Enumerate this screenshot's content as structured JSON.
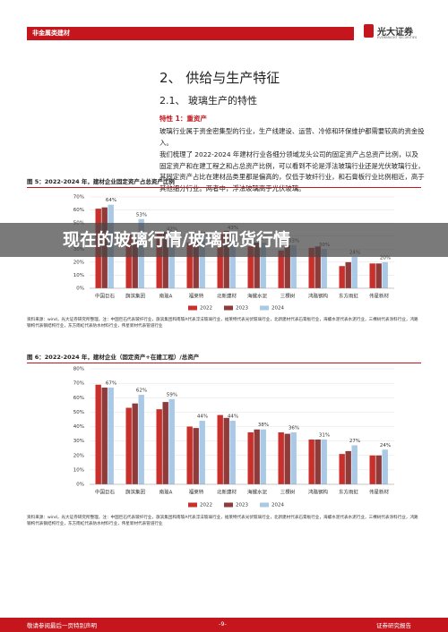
{
  "header": {
    "section": "非金属类建材",
    "brand": "光大证券",
    "brand_en": "EVERBRIGHT SECURITIES"
  },
  "heading": "2、 供给与生产特征",
  "subheading": "2.1、 玻璃生产的特性",
  "feature": "特性 1：重资产",
  "paragraphs": [
    "玻璃行业属于资金密集型的行业，生产线建设、运营、冷修和环保维护都需要较高的资金投入。",
    "我们梳理了 2022-2024 年建材行业各细分领域龙头公司的固定资产占总资产比例，以及固定资产和在建工程之和占总资产比例，可以看到不论是浮法玻璃行业还是光伏玻璃行业，其固定资产占比在建材品类里都是偏高的，仅低于玻纤行业，和石膏板行业比例相近，高于其他细分行业。两者中，浮法玻璃高于光伏玻璃。"
  ],
  "chart_data": [
    {
      "type": "bar",
      "title": "图 5：2022-2024 年，建材企业固定资产占总资产比例",
      "source": "资料来源：wind，光大证券研究所整理，注：中国巨石代表玻纤行业，旗滨集团和南玻A代表浮法玻璃行业，福莱特代表光伏玻璃行业，北新建材代表石膏板行业，海螺水泥代表水泥行业，三棵树代表涂料行业，鸿路钢构代表钢结构行业，东方雨虹代表防水材料行业，伟星新材代表管道行业",
      "categories": [
        "中国巨石",
        "旗滨集团",
        "南玻A",
        "福莱特",
        "北新建材",
        "海螺水泥",
        "三棵树",
        "鸿路钢构",
        "东方雨虹",
        "伟星新材"
      ],
      "series": [
        {
          "name": "2022",
          "color": "#c9302c",
          "values": [
            61,
            41,
            43,
            35,
            43,
            32,
            29,
            31,
            17,
            19
          ]
        },
        {
          "name": "2023",
          "color": "#8e3b3b",
          "values": [
            62,
            37,
            43,
            36,
            44,
            35,
            33,
            32,
            20,
            19
          ]
        },
        {
          "name": "2024",
          "color": "#a9c9e6",
          "values": [
            64,
            53,
            42,
            38,
            43,
            35,
            33,
            30,
            24,
            20
          ],
          "value_labels": [
            "64%",
            "53%",
            "42%",
            "38%",
            "43%",
            "35%",
            "33%",
            "30%",
            "24%",
            "20%"
          ]
        }
      ],
      "ylim": [
        0,
        70
      ],
      "yticks": [
        {
          "value": 0,
          "label": "0%"
        },
        {
          "value": 10,
          "label": "10%"
        },
        {
          "value": 20,
          "label": "20%"
        },
        {
          "value": 30,
          "label": "30%"
        },
        {
          "value": 40,
          "label": "40%"
        },
        {
          "value": 50,
          "label": "50%"
        },
        {
          "value": 60,
          "label": "60%"
        },
        {
          "value": 70,
          "label": "70%"
        }
      ],
      "grid": true,
      "legend": "bottom"
    },
    {
      "type": "bar",
      "title": "图 6：2022-2024 年，建材企业（固定资产+在建工程）/总资产",
      "source": "资料来源：wind，光大证券研究所整理，注：中国巨石代表玻纤行业，旗滨集团和南玻A代表浮法玻璃行业，福莱特代表光伏玻璃行业，北新建材代表石膏板行业，海螺水泥代表水泥行业，三棵树代表涂料行业，鸿路钢构代表钢结构行业，东方雨虹代表防水材料行业，伟星新材代表管道行业",
      "categories": [
        "中国巨石",
        "旗滨集团",
        "南玻A",
        "福莱特",
        "北新建材",
        "海螺水泥",
        "三棵树",
        "鸿路钢构",
        "东方雨虹",
        "伟星新材"
      ],
      "series": [
        {
          "name": "2022",
          "color": "#c9302c",
          "values": [
            69,
            53,
            52,
            40,
            48,
            36,
            36,
            31,
            21,
            20
          ]
        },
        {
          "name": "2023",
          "color": "#8e3b3b",
          "values": [
            67,
            56,
            57,
            39,
            46,
            38,
            35,
            31,
            23,
            20
          ]
        },
        {
          "name": "2024",
          "color": "#a9c9e6",
          "values": [
            67,
            62,
            59,
            44,
            44,
            38,
            36,
            31,
            27,
            24
          ],
          "value_labels": [
            "67%",
            "62%",
            "59%",
            "44%",
            "44%",
            "38%",
            "36%",
            "31%",
            "27%",
            "24%"
          ]
        }
      ],
      "ylim": [
        0,
        80
      ],
      "yticks": [
        {
          "value": 0,
          "label": "0%"
        },
        {
          "value": 10,
          "label": "10%"
        },
        {
          "value": 20,
          "label": "20%"
        },
        {
          "value": 30,
          "label": "30%"
        },
        {
          "value": 40,
          "label": "40%"
        },
        {
          "value": 50,
          "label": "50%"
        },
        {
          "value": 60,
          "label": "60%"
        },
        {
          "value": 70,
          "label": "70%"
        },
        {
          "value": 80,
          "label": "80%"
        }
      ],
      "grid": true,
      "legend": "bottom"
    }
  ],
  "overlay": {
    "text": "现在的玻璃行情/玻璃现货行情"
  },
  "footer": {
    "left": "敬请参阅最后一页特别声明",
    "page": "-9-",
    "right": "证券研究报告"
  }
}
